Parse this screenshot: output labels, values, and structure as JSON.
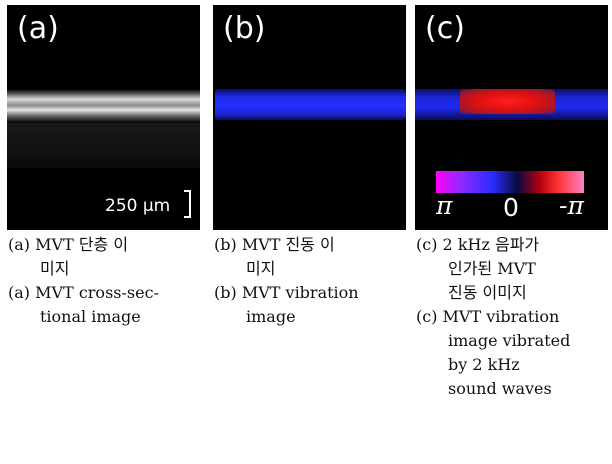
{
  "panels": [
    {
      "letter": "(a)",
      "scale_label": "250 μm"
    },
    {
      "letter": "(b)"
    },
    {
      "letter": "(c)",
      "colorbar": {
        "left": "π",
        "mid": "0",
        "right": "-π"
      }
    }
  ],
  "captions": {
    "a": {
      "ko_tag": "(a)",
      "ko_line1": "MVT 단층 이",
      "ko_line2": "미지",
      "en_tag": "(a)",
      "en_line1": "MVT cross-sec-",
      "en_line2": "tional image"
    },
    "b": {
      "ko_tag": "(b)",
      "ko_line1": "MVT 진동 이",
      "ko_line2": "미지",
      "en_tag": "(b)",
      "en_line1": "MVT vibration",
      "en_line2": "image"
    },
    "c": {
      "ko_tag": "(c)",
      "ko_line1": "2 kHz 음파가",
      "ko_line2": "인가된 MVT",
      "ko_line3": "진동 이미지",
      "en_tag": "(c)",
      "en_line1": "MVT vibration",
      "en_line2": "image vibrated",
      "en_line3": "by 2 kHz",
      "en_line4": "sound waves"
    }
  }
}
